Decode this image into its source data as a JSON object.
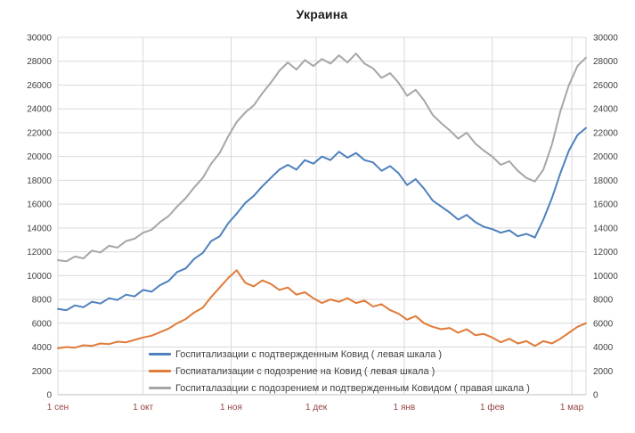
{
  "title": "Украина",
  "colors": {
    "series_confirmed": "#4e81bd",
    "series_suspected": "#e07b39",
    "series_total": "#a6a6a6",
    "gridline": "#d9d9d9",
    "axis_line": "#bfbfbf",
    "y_label_color": "#404040",
    "x_label_color": "#944441",
    "title_color": "#1b1b1b",
    "background": "#ffffff"
  },
  "chart_data": {
    "type": "line",
    "title": "Украина",
    "legend_position": "bottom-inside",
    "grid": true,
    "x_axis": {
      "tick_labels": [
        "1 сен",
        "1 окт",
        "1 ноя",
        "1 дек",
        "1 янв",
        "1 фев",
        "1 мар"
      ],
      "tick_days": [
        0,
        30,
        61,
        91,
        122,
        153,
        181
      ],
      "label_color": "#944441"
    },
    "y_axis": {
      "min": 0,
      "max": 30000,
      "step": 2000,
      "left_and_right_scales_identical": true
    },
    "sample_days": [
      0,
      3,
      6,
      9,
      12,
      15,
      18,
      21,
      24,
      27,
      30,
      33,
      36,
      39,
      42,
      45,
      48,
      51,
      54,
      57,
      60,
      63,
      66,
      69,
      72,
      75,
      78,
      81,
      84,
      87,
      90,
      93,
      96,
      99,
      102,
      105,
      108,
      111,
      114,
      117,
      120,
      123,
      126,
      129,
      132,
      135,
      138,
      141,
      144,
      147,
      150,
      153,
      156,
      159,
      162,
      165,
      168,
      171,
      174,
      177,
      180,
      183,
      186
    ],
    "series": [
      {
        "id": "confirmed",
        "name": "Госпитализации с подтвержденным Ковид ( левая шкала )",
        "axis": "left",
        "color": "#4e81bd",
        "values": [
          7200,
          7100,
          7500,
          7350,
          7800,
          7650,
          8100,
          7950,
          8400,
          8250,
          8800,
          8650,
          9200,
          9550,
          10300,
          10600,
          11400,
          11900,
          12900,
          13300,
          14400,
          15200,
          16100,
          16700,
          17500,
          18200,
          18900,
          19300,
          18900,
          19700,
          19400,
          20000,
          19700,
          20400,
          19900,
          20300,
          19700,
          19500,
          18800,
          19200,
          18600,
          17600,
          18100,
          17300,
          16300,
          15800,
          15300,
          14700,
          15100,
          14500,
          14100,
          13900,
          13600,
          13800,
          13300,
          13500,
          13200,
          14700,
          16500,
          18600,
          20500,
          21800,
          22400
        ]
      },
      {
        "id": "suspected",
        "name": "Госпиатализации с подозрение на Ковид ( левая шкала )",
        "axis": "left",
        "color": "#e07b39",
        "values": [
          3900,
          4000,
          3950,
          4150,
          4100,
          4300,
          4250,
          4450,
          4400,
          4600,
          4800,
          4950,
          5250,
          5550,
          6000,
          6350,
          6900,
          7300,
          8200,
          9000,
          9800,
          10450,
          9400,
          9100,
          9600,
          9300,
          8800,
          9000,
          8400,
          8600,
          8100,
          7700,
          8000,
          7800,
          8100,
          7700,
          7900,
          7400,
          7600,
          7100,
          6800,
          6300,
          6600,
          6000,
          5700,
          5500,
          5600,
          5200,
          5500,
          5000,
          5100,
          4800,
          4400,
          4700,
          4300,
          4500,
          4100,
          4500,
          4300,
          4700,
          5200,
          5700,
          6000
        ]
      },
      {
        "id": "total",
        "name": "Госпиталазации с подозрением и подтвержденным Ковидом ( правая шкала )",
        "axis": "right",
        "color": "#a6a6a6",
        "values": [
          11300,
          11200,
          11600,
          11450,
          12100,
          11950,
          12500,
          12350,
          12900,
          13100,
          13600,
          13850,
          14500,
          15000,
          15800,
          16500,
          17400,
          18200,
          19400,
          20300,
          21700,
          22900,
          23700,
          24300,
          25300,
          26200,
          27200,
          27900,
          27300,
          28100,
          27600,
          28200,
          27800,
          28500,
          27900,
          28650,
          27800,
          27400,
          26600,
          27000,
          26200,
          25100,
          25600,
          24700,
          23500,
          22800,
          22200,
          21500,
          22000,
          21100,
          20500,
          20000,
          19300,
          19600,
          18800,
          18200,
          17900,
          18900,
          21000,
          23800,
          26000,
          27600,
          28300
        ]
      }
    ]
  }
}
